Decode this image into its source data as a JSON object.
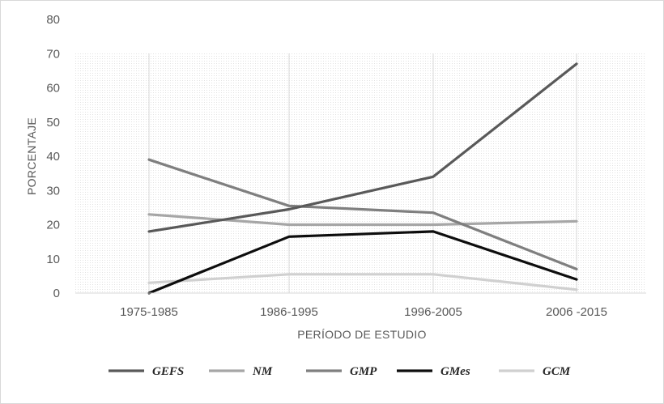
{
  "chart_data": {
    "type": "line",
    "title": "",
    "xlabel": "PERÍODO DE ESTUDIO",
    "ylabel": "PORCENTAJE",
    "categories": [
      "1975-1985",
      "1986-1995",
      "1996-2005",
      "2006 -2015"
    ],
    "ylim": [
      0,
      80
    ],
    "yticks": [
      0,
      10,
      20,
      30,
      40,
      50,
      60,
      70,
      80
    ],
    "grid": false,
    "legend_position": "bottom",
    "series": [
      {
        "name": "GEFS",
        "color": "#595959",
        "values": [
          18,
          24.5,
          34,
          67
        ]
      },
      {
        "name": "NM",
        "color": "#a6a6a6",
        "values": [
          23,
          20,
          20,
          21
        ]
      },
      {
        "name": "GMP",
        "color": "#7f7f7f",
        "values": [
          39,
          25.5,
          23.5,
          7
        ]
      },
      {
        "name": "GMes",
        "color": "#0d0d0d",
        "values": [
          0,
          16.5,
          18,
          4
        ]
      },
      {
        "name": "GCM",
        "color": "#d0d0d0",
        "values": [
          3,
          5.5,
          5.5,
          1
        ]
      }
    ]
  }
}
